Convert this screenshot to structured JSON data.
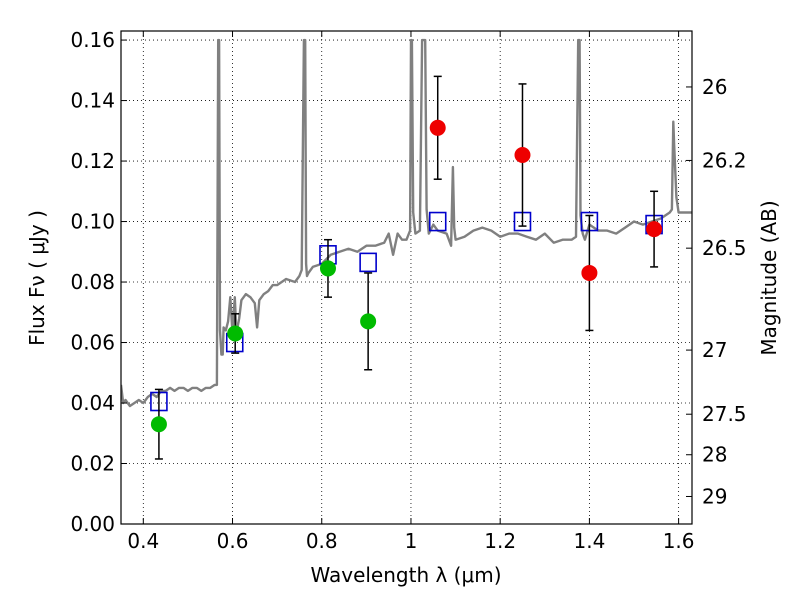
{
  "chart_data": {
    "type": "scatter",
    "xlabel": "Wavelength  λ (μm)",
    "ylabel": "Flux  Fν  ( μJy )",
    "ylabel_right": "Magnitude (AB)",
    "xlim": [
      0.35,
      1.63
    ],
    "ylim": [
      0.0,
      0.163
    ],
    "grid": true,
    "x_ticks": [
      0.4,
      0.6,
      0.8,
      1.0,
      1.2,
      1.4,
      1.6
    ],
    "x_tick_labels": [
      "0.4",
      "0.6",
      "0.8",
      "1",
      "1.2",
      "1.4",
      "1.6"
    ],
    "y_ticks": [
      0.0,
      0.02,
      0.04,
      0.06,
      0.08,
      0.1,
      0.12,
      0.14,
      0.16
    ],
    "y_tick_labels": [
      "0.00",
      "0.02",
      "0.04",
      "0.06",
      "0.08",
      "0.10",
      "0.12",
      "0.14",
      "0.16"
    ],
    "right_ticks": [
      {
        "label": "26",
        "flux": 0.1445
      },
      {
        "label": "26.2",
        "flux": 0.1202
      },
      {
        "label": "26.5",
        "flux": 0.0912
      },
      {
        "label": "27",
        "flux": 0.0575
      },
      {
        "label": "27.5",
        "flux": 0.0363
      },
      {
        "label": "28",
        "flux": 0.0229
      },
      {
        "label": "29",
        "flux": 0.0091
      }
    ],
    "series": [
      {
        "name": "model spectrum",
        "kind": "line",
        "color": "#808080",
        "x": [
          0.35,
          0.355,
          0.36,
          0.37,
          0.38,
          0.39,
          0.4,
          0.41,
          0.42,
          0.43,
          0.44,
          0.45,
          0.46,
          0.47,
          0.48,
          0.49,
          0.5,
          0.51,
          0.52,
          0.53,
          0.54,
          0.55,
          0.56,
          0.565,
          0.568,
          0.57,
          0.572,
          0.575,
          0.578,
          0.58,
          0.585,
          0.59,
          0.595,
          0.6,
          0.605,
          0.608,
          0.61,
          0.615,
          0.62,
          0.63,
          0.64,
          0.65,
          0.655,
          0.66,
          0.67,
          0.68,
          0.69,
          0.7,
          0.72,
          0.74,
          0.75,
          0.755,
          0.76,
          0.763,
          0.765,
          0.767,
          0.77,
          0.78,
          0.8,
          0.82,
          0.84,
          0.86,
          0.88,
          0.9,
          0.92,
          0.94,
          0.95,
          0.96,
          0.97,
          0.98,
          0.99,
          0.998,
          1.0,
          1.002,
          1.005,
          1.01,
          1.02,
          1.025,
          1.028,
          1.03,
          1.032,
          1.035,
          1.04,
          1.05,
          1.06,
          1.08,
          1.09,
          1.094,
          1.097,
          1.1,
          1.12,
          1.14,
          1.16,
          1.18,
          1.2,
          1.22,
          1.24,
          1.26,
          1.28,
          1.3,
          1.32,
          1.34,
          1.36,
          1.37,
          1.375,
          1.378,
          1.38,
          1.385,
          1.39,
          1.4,
          1.42,
          1.44,
          1.46,
          1.48,
          1.5,
          1.52,
          1.54,
          1.56,
          1.58,
          1.585,
          1.588,
          1.59,
          1.595,
          1.6,
          1.62,
          1.63
        ],
        "y": [
          0.046,
          0.04,
          0.041,
          0.039,
          0.04,
          0.041,
          0.04,
          0.042,
          0.043,
          0.042,
          0.044,
          0.044,
          0.045,
          0.044,
          0.045,
          0.045,
          0.044,
          0.045,
          0.045,
          0.044,
          0.045,
          0.045,
          0.046,
          0.046,
          0.16,
          0.16,
          0.064,
          0.056,
          0.056,
          0.065,
          0.064,
          0.067,
          0.075,
          0.063,
          0.075,
          0.065,
          0.064,
          0.068,
          0.074,
          0.076,
          0.075,
          0.073,
          0.065,
          0.074,
          0.076,
          0.077,
          0.079,
          0.079,
          0.081,
          0.08,
          0.082,
          0.084,
          0.16,
          0.16,
          0.086,
          0.082,
          0.083,
          0.085,
          0.086,
          0.089,
          0.09,
          0.091,
          0.09,
          0.092,
          0.092,
          0.093,
          0.096,
          0.089,
          0.096,
          0.094,
          0.094,
          0.097,
          0.16,
          0.16,
          0.103,
          0.096,
          0.097,
          0.16,
          0.16,
          0.16,
          0.16,
          0.104,
          0.096,
          0.099,
          0.097,
          0.096,
          0.092,
          0.118,
          0.098,
          0.094,
          0.095,
          0.097,
          0.098,
          0.097,
          0.095,
          0.096,
          0.096,
          0.095,
          0.094,
          0.096,
          0.093,
          0.094,
          0.094,
          0.095,
          0.16,
          0.16,
          0.102,
          0.096,
          0.094,
          0.099,
          0.097,
          0.097,
          0.096,
          0.098,
          0.1,
          0.099,
          0.1,
          0.101,
          0.103,
          0.104,
          0.133,
          0.125,
          0.108,
          0.103,
          0.103,
          0.103
        ]
      },
      {
        "name": "model photometry",
        "kind": "open-square",
        "color": "#0000cc",
        "x": [
          0.435,
          0.605,
          0.814,
          0.904,
          1.06,
          1.25,
          1.4,
          1.545
        ],
        "y": [
          0.0405,
          0.06,
          0.089,
          0.0865,
          0.1,
          0.1,
          0.1,
          0.099
        ]
      },
      {
        "name": "green detections",
        "kind": "filled-circle",
        "color": "#00bb00",
        "x": [
          0.435,
          0.606,
          0.814,
          0.904
        ],
        "y": [
          0.033,
          0.063,
          0.0845,
          0.067
        ],
        "err_low": [
          0.0115,
          0.0065,
          0.0095,
          0.016
        ],
        "err_high": [
          0.0115,
          0.0065,
          0.0095,
          0.016
        ]
      },
      {
        "name": "red detections",
        "kind": "filled-circle",
        "color": "#ee0000",
        "x": [
          1.06,
          1.25,
          1.4,
          1.545
        ],
        "y": [
          0.131,
          0.122,
          0.083,
          0.0975
        ],
        "err_low": [
          0.017,
          0.0235,
          0.019,
          0.0125
        ],
        "err_high": [
          0.017,
          0.0235,
          0.019,
          0.0125
        ]
      }
    ]
  }
}
